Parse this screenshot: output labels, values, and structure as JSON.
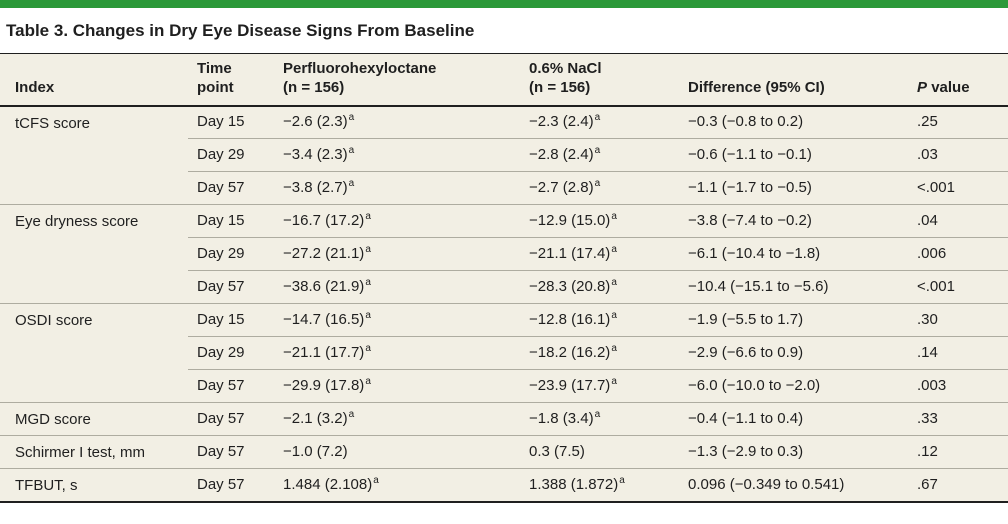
{
  "accent_color": "#2b9939",
  "table_background": "#f2efe4",
  "title": "Table 3. Changes in Dry Eye Disease Signs From Baseline",
  "table": {
    "header": {
      "index": "Index",
      "time_line1": "Time",
      "time_line2": "point",
      "drug_line1": "Perfluorohexyloctane",
      "drug_line2": "(n = 156)",
      "nacl_line1": "0.6% NaCl",
      "nacl_line2": "(n = 156)",
      "difference": "Difference (95% CI)",
      "p_italic": "P",
      "p_rest": "value"
    },
    "footnote_marker": "a",
    "groups": [
      {
        "index": "tCFS score",
        "rows": [
          {
            "time": "Day 15",
            "drug": "−2.6 (2.3)",
            "drug_sup": "a",
            "nacl": "−2.3 (2.4)",
            "nacl_sup": "a",
            "diff": "−0.3 (−0.8 to 0.2)",
            "p": ".25"
          },
          {
            "time": "Day 29",
            "drug": "−3.4 (2.3)",
            "drug_sup": "a",
            "nacl": "−2.8 (2.4)",
            "nacl_sup": "a",
            "diff": "−0.6 (−1.1 to −0.1)",
            "p": ".03"
          },
          {
            "time": "Day 57",
            "drug": "−3.8 (2.7)",
            "drug_sup": "a",
            "nacl": "−2.7 (2.8)",
            "nacl_sup": "a",
            "diff": "−1.1 (−1.7 to −0.5)",
            "p": "<.001"
          }
        ]
      },
      {
        "index": "Eye dryness score",
        "rows": [
          {
            "time": "Day 15",
            "drug": "−16.7 (17.2)",
            "drug_sup": "a",
            "nacl": "−12.9 (15.0)",
            "nacl_sup": "a",
            "diff": "−3.8 (−7.4 to −0.2)",
            "p": ".04"
          },
          {
            "time": "Day 29",
            "drug": "−27.2 (21.1)",
            "drug_sup": "a",
            "nacl": "−21.1 (17.4)",
            "nacl_sup": "a",
            "diff": "−6.1 (−10.4 to −1.8)",
            "p": ".006"
          },
          {
            "time": "Day 57",
            "drug": "−38.6 (21.9)",
            "drug_sup": "a",
            "nacl": "−28.3 (20.8)",
            "nacl_sup": "a",
            "diff": "−10.4 (−15.1 to −5.6)",
            "p": "<.001"
          }
        ]
      },
      {
        "index": "OSDI score",
        "rows": [
          {
            "time": "Day 15",
            "drug": "−14.7 (16.5)",
            "drug_sup": "a",
            "nacl": "−12.8 (16.1)",
            "nacl_sup": "a",
            "diff": "−1.9 (−5.5 to 1.7)",
            "p": ".30"
          },
          {
            "time": "Day 29",
            "drug": "−21.1 (17.7)",
            "drug_sup": "a",
            "nacl": "−18.2 (16.2)",
            "nacl_sup": "a",
            "diff": "−2.9 (−6.6 to 0.9)",
            "p": ".14"
          },
          {
            "time": "Day 57",
            "drug": "−29.9 (17.8)",
            "drug_sup": "a",
            "nacl": "−23.9 (17.7)",
            "nacl_sup": "a",
            "diff": "−6.0 (−10.0 to −2.0)",
            "p": ".003"
          }
        ]
      },
      {
        "index": "MGD score",
        "rows": [
          {
            "time": "Day 57",
            "drug": "−2.1 (3.2)",
            "drug_sup": "a",
            "nacl": "−1.8 (3.4)",
            "nacl_sup": "a",
            "diff": "−0.4 (−1.1 to 0.4)",
            "p": ".33"
          }
        ]
      },
      {
        "index": "Schirmer I test, mm",
        "rows": [
          {
            "time": "Day 57",
            "drug": "−1.0 (7.2)",
            "drug_sup": "",
            "nacl": "0.3 (7.5)",
            "nacl_sup": "",
            "diff": "−1.3 (−2.9 to 0.3)",
            "p": ".12"
          }
        ]
      },
      {
        "index": "TFBUT, s",
        "rows": [
          {
            "time": "Day 57",
            "drug": "1.484 (2.108)",
            "drug_sup": "a",
            "nacl": "1.388 (1.872)",
            "nacl_sup": "a",
            "diff": "0.096 (−0.349 to 0.541)",
            "p": ".67"
          }
        ]
      }
    ]
  }
}
